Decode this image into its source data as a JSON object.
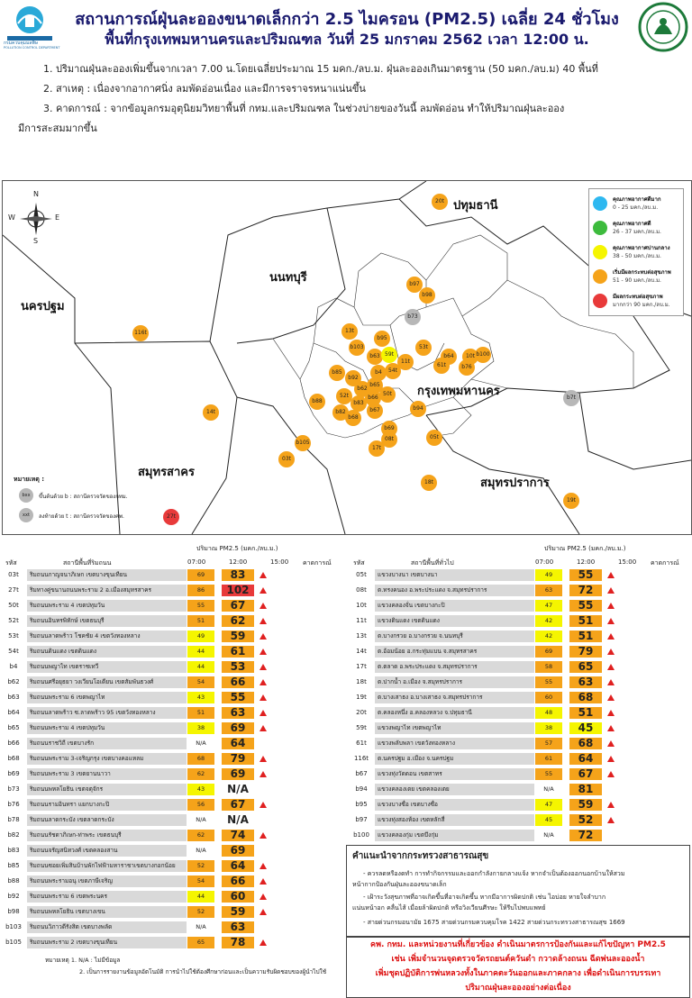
{
  "header": {
    "title1": "สถานการณ์ฝุ่นละอองขนาดเล็กกว่า 2.5 ไมครอน (PM2.5) เฉลี่ย 24 ชั่วโมง",
    "title2": "พื้นที่กรุงเทพมหานครและปริมณฑล วันที่ 25 มกราคม 2562 เวลา 12:00 น.",
    "left_logo_text": "กรมควบคุมมลพิษ",
    "left_logo_sub": "POLLUTION CONTROL DEPARTMENT"
  },
  "notes": [
    "1. ปริมาณฝุ่นละอองเพิ่มขึ้นจากเวลา 7.00 น.โดยเฉลี่ยประมาณ 15 มคก./ลบ.ม. ฝุ่นละอองเกินมาตรฐาน (50 มคก./ลบ.ม) 40 พื้นที่",
    "2. สาเหตุ :  เนื่องจากอากาศนิ่ง ลมพัดอ่อนเนื่อง และมีการจราจรหนาแน่นขึ้น",
    "3. คาดการณ์ : จากข้อมูลกรมอุตุนิยมวิทยาพื้นที่ กทม.และปริมณฑล ในช่วงบ่ายของวันนี้ ลมพัดอ่อน ทำให้ปริมาณฝุ่นละออง",
    "มีการสะสมมากขึ้น"
  ],
  "map": {
    "compass": {
      "n": "N",
      "s": "S",
      "e": "E",
      "w": "W"
    },
    "provinces": {
      "pathum": "ปทุมธานี",
      "nonthaburi": "นนทบุรี",
      "nakhonpathom": "นครปฐม",
      "bangkok": "กรุงเทพมหานคร",
      "samutsakhon": "สมุทรสาคร",
      "samutprakan": "สมุทรปราการ"
    },
    "legend": [
      {
        "title": "คุณภาพอากาศดีมาก",
        "range": "0 - 25 มคก./ลบ.ม.",
        "color": "#2eb8f0"
      },
      {
        "title": "คุณภาพอากาศดี",
        "range": "26 - 37 มคก./ลบ.ม.",
        "color": "#3dbb3d"
      },
      {
        "title": "คุณภาพอากาศปานกลาง",
        "range": "38 - 50 มคก./ลบ.ม.",
        "color": "#f5f500"
      },
      {
        "title": "เริ่มมีผลกระทบต่อสุขภาพ",
        "range": "51 - 90 มคก./ลบ.ม.",
        "color": "#f5a31a"
      },
      {
        "title": "มีผลกระทบต่อสุขภาพ",
        "range": "มากกว่า 90 มคก./ลบ.ม.",
        "color": "#e83a3a"
      }
    ],
    "key_title": "หมายเหตุ :",
    "key_b": "ขึ้นต้นด้วย b : สถานีตรวจวัดของกทม.",
    "key_t": "ลงท้ายด้วย t : สถานีตรวจวัดของคพ.",
    "key_b_sample": "bxx",
    "key_t_sample": "xxt",
    "stations": [
      {
        "id": "20t",
        "color": "#f5a31a"
      },
      {
        "id": "b97",
        "color": "#f5a31a"
      },
      {
        "id": "b98",
        "color": "#f5a31a"
      },
      {
        "id": "b73",
        "color": "#b7b7b7"
      },
      {
        "id": "116t",
        "color": "#f5a31a"
      },
      {
        "id": "13t",
        "color": "#f5a31a"
      },
      {
        "id": "b95",
        "color": "#f5a31a"
      },
      {
        "id": "b103",
        "color": "#f5a31a"
      },
      {
        "id": "b63",
        "color": "#f5a31a"
      },
      {
        "id": "59t",
        "color": "#f5f500"
      },
      {
        "id": "53t",
        "color": "#f5a31a"
      },
      {
        "id": "b64",
        "color": "#f5a31a"
      },
      {
        "id": "10t",
        "color": "#f5a31a"
      },
      {
        "id": "b100",
        "color": "#f5a31a"
      },
      {
        "id": "b85",
        "color": "#f5a31a"
      },
      {
        "id": "b4",
        "color": "#f5a31a"
      },
      {
        "id": "54t",
        "color": "#f5a31a"
      },
      {
        "id": "11t",
        "color": "#f5a31a"
      },
      {
        "id": "61t",
        "color": "#f5a31a"
      },
      {
        "id": "b76",
        "color": "#f5a31a"
      },
      {
        "id": "b92",
        "color": "#f5a31a"
      },
      {
        "id": "b62",
        "color": "#f5a31a"
      },
      {
        "id": "b65",
        "color": "#f5a31a"
      },
      {
        "id": "52t",
        "color": "#f5a31a"
      },
      {
        "id": "b66",
        "color": "#f5a31a"
      },
      {
        "id": "50t",
        "color": "#f5a31a"
      },
      {
        "id": "b88",
        "color": "#f5a31a"
      },
      {
        "id": "b83",
        "color": "#f5a31a"
      },
      {
        "id": "b67",
        "color": "#f5a31a"
      },
      {
        "id": "b82",
        "color": "#f5a31a"
      },
      {
        "id": "b68",
        "color": "#f5a31a"
      },
      {
        "id": "b94",
        "color": "#f5a31a"
      },
      {
        "id": "b7t",
        "color": "#b7b7b7"
      },
      {
        "id": "14t",
        "color": "#f5a31a"
      },
      {
        "id": "b69",
        "color": "#f5a31a"
      },
      {
        "id": "08t",
        "color": "#f5a31a"
      },
      {
        "id": "b105",
        "color": "#f5a31a"
      },
      {
        "id": "17t",
        "color": "#f5a31a"
      },
      {
        "id": "05t",
        "color": "#f5a31a"
      },
      {
        "id": "03t",
        "color": "#f5a31a"
      },
      {
        "id": "18t",
        "color": "#f5a31a"
      },
      {
        "id": "19t",
        "color": "#f5a31a"
      },
      {
        "id": "27t",
        "color": "#e83a3a"
      }
    ]
  },
  "table": {
    "unit_header": "ปริมาณ PM2.5 (มคก./ลบ.ม.)",
    "col_code": "รหัส",
    "col_name_left": "สถานีพื้นที่ริมถนน",
    "col_name_right": "สถานีพื้นที่ทั่วไป",
    "col_07": "07:00",
    "col_12": "12:00",
    "col_15": "15:00",
    "col_fc": "คาดการณ์",
    "left": [
      {
        "code": "03t",
        "name": "ริมถนนกาญจนาภิเษก เขตบางขุนเทียน",
        "v07": "69",
        "v12": "83",
        "c07": "#f5a31a",
        "c12": "#f5a31a",
        "up": true
      },
      {
        "code": "27t",
        "name": "ริมทางคู่ขนานถนนพระราม 2 อ.เมืองสมุทรสาคร",
        "v07": "86",
        "v12": "102",
        "c07": "#f5a31a",
        "c12": "#e83a3a",
        "up": true
      },
      {
        "code": "50t",
        "name": "ริมถนนพระราม 4 เขตปทุมวัน",
        "v07": "55",
        "v12": "67",
        "c07": "#f5a31a",
        "c12": "#f5a31a",
        "up": true
      },
      {
        "code": "52t",
        "name": "ริมถนนอินทรพิทักษ์ เขตธนบุรี",
        "v07": "51",
        "v12": "62",
        "c07": "#f5a31a",
        "c12": "#f5a31a",
        "up": true
      },
      {
        "code": "53t",
        "name": "ริมถนนลาดพร้าว โชคชัย 4 เขตวังทองหลาง",
        "v07": "49",
        "v12": "59",
        "c07": "#f5f500",
        "c12": "#f5a31a",
        "up": true
      },
      {
        "code": "54t",
        "name": "ริมถนนดินแดง เขตดินแดง",
        "v07": "44",
        "v12": "61",
        "c07": "#f5f500",
        "c12": "#f5a31a",
        "up": true
      },
      {
        "code": "b4",
        "name": "ริมถนนพญาไท เขตราชเทวี",
        "v07": "44",
        "v12": "53",
        "c07": "#f5f500",
        "c12": "#f5a31a",
        "up": true
      },
      {
        "code": "b62",
        "name": "ริมถนนศรีอยุธยา วงเวียนโอเดียน เขตสัมพันธวงศ์",
        "v07": "54",
        "v12": "66",
        "c07": "#f5a31a",
        "c12": "#f5a31a",
        "up": true
      },
      {
        "code": "b63",
        "name": "ริมถนนพระราม 6 เขตพญาไท",
        "v07": "43",
        "v12": "55",
        "c07": "#f5f500",
        "c12": "#f5a31a",
        "up": true
      },
      {
        "code": "b64",
        "name": "ริมถนนลาดพร้าว ซ.ลาดพร้าว 95 เขตวังทองหลาง",
        "v07": "51",
        "v12": "63",
        "c07": "#f5a31a",
        "c12": "#f5a31a",
        "up": true
      },
      {
        "code": "b65",
        "name": "ริมถนนพระราม 4 เขตปทุมวัน",
        "v07": "38",
        "v12": "69",
        "c07": "#f5f500",
        "c12": "#f5a31a",
        "up": true
      },
      {
        "code": "b66",
        "name": "ริมถนนราชวิถี เขตบางรัก",
        "v07": "N/A",
        "v12": "64",
        "c07": "#ffffff",
        "c12": "#f5a31a",
        "up": false
      },
      {
        "code": "b68",
        "name": "ริมถนนพระราม 3-เจริญกรุง เขตบางคอแหลม",
        "v07": "68",
        "v12": "79",
        "c07": "#f5a31a",
        "c12": "#f5a31a",
        "up": true
      },
      {
        "code": "b69",
        "name": "ริมถนนพระราม 3 เขตยานนาวา",
        "v07": "62",
        "v12": "69",
        "c07": "#f5a31a",
        "c12": "#f5a31a",
        "up": true
      },
      {
        "code": "b73",
        "name": "ริมถนนพหลโยธิน เขตจตุจักร",
        "v07": "43",
        "v12": "N/A",
        "c07": "#f5f500",
        "c12": "#ffffff",
        "up": false
      },
      {
        "code": "b76",
        "name": "ริมถนนรามอินทรา แยกบางกะปิ",
        "v07": "56",
        "v12": "67",
        "c07": "#f5a31a",
        "c12": "#f5a31a",
        "up": true
      },
      {
        "code": "b78",
        "name": "ริมถนนลาดกระบัง เขตลาดกระบัง",
        "v07": "N/A",
        "v12": "N/A",
        "c07": "#ffffff",
        "c12": "#ffffff",
        "up": false
      },
      {
        "code": "b82",
        "name": "ริมถนนรัชดาภิเษก-ท่าพระ เขตธนบุรี",
        "v07": "62",
        "v12": "74",
        "c07": "#f5a31a",
        "c12": "#f5a31a",
        "up": true
      },
      {
        "code": "b83",
        "name": "ริมถนนจรัญสนิทวงศ์ เขตคลองสาน",
        "v07": "N/A",
        "v12": "69",
        "c07": "#ffffff",
        "c12": "#f5a31a",
        "up": false
      },
      {
        "code": "b85",
        "name": "ริมถนนซอยเพิ่มสินบ้านพักไฟฟ้ามหาราชาเขตบางกอกน้อย",
        "v07": "52",
        "v12": "64",
        "c07": "#f5a31a",
        "c12": "#f5a31a",
        "up": true
      },
      {
        "code": "b88",
        "name": "ริมถนนพระรามอนุ เขตภาษีเจริญ",
        "v07": "54",
        "v12": "66",
        "c07": "#f5a31a",
        "c12": "#f5a31a",
        "up": true
      },
      {
        "code": "b92",
        "name": "ริมถนนพระราม 6 เขตพระนคร",
        "v07": "44",
        "v12": "60",
        "c07": "#f5f500",
        "c12": "#f5a31a",
        "up": true
      },
      {
        "code": "b98",
        "name": "ริมถนนพหลโยธิน เขตบางเขน",
        "v07": "52",
        "v12": "59",
        "c07": "#f5a31a",
        "c12": "#f5a31a",
        "up": true
      },
      {
        "code": "b103",
        "name": "ริมถนนวิภาวดีรังสิต เขตบางพลัด",
        "v07": "N/A",
        "v12": "63",
        "c07": "#ffffff",
        "c12": "#f5a31a",
        "up": false
      },
      {
        "code": "b105",
        "name": "ริมถนนพระราม 2 เขตบางขุนเทียน",
        "v07": "65",
        "v12": "78",
        "c07": "#f5a31a",
        "c12": "#f5a31a",
        "up": true
      }
    ],
    "right": [
      {
        "code": "05t",
        "name": "แขวงบางนา เขตบางนา",
        "v07": "49",
        "v12": "55",
        "c07": "#f5f500",
        "c12": "#f5a31a",
        "up": true
      },
      {
        "code": "08t",
        "name": "ต.ทรงคนอง อ.พระประแดง จ.สมุทรปราการ",
        "v07": "63",
        "v12": "72",
        "c07": "#f5a31a",
        "c12": "#f5a31a",
        "up": true
      },
      {
        "code": "10t",
        "name": "แขวงคลองจั่น เขตบางกะปิ",
        "v07": "47",
        "v12": "55",
        "c07": "#f5f500",
        "c12": "#f5a31a",
        "up": true
      },
      {
        "code": "11t",
        "name": "แขวงดินแดง เขตดินแดง",
        "v07": "42",
        "v12": "51",
        "c07": "#f5f500",
        "c12": "#f5a31a",
        "up": true
      },
      {
        "code": "13t",
        "name": "ต.บางกรวย อ.บางกรวย จ.นนทบุรี",
        "v07": "42",
        "v12": "51",
        "c07": "#f5f500",
        "c12": "#f5a31a",
        "up": true
      },
      {
        "code": "14t",
        "name": "ต.อ้อมน้อย อ.กระทุ่มแบน จ.สมุทรสาคร",
        "v07": "69",
        "v12": "79",
        "c07": "#f5a31a",
        "c12": "#f5a31a",
        "up": true
      },
      {
        "code": "17t",
        "name": "ต.ตลาด อ.พระประแดง จ.สมุทรปราการ",
        "v07": "58",
        "v12": "65",
        "c07": "#f5a31a",
        "c12": "#f5a31a",
        "up": true
      },
      {
        "code": "18t",
        "name": "ต.ปากน้ำ อ.เมือง จ.สมุทรปราการ",
        "v07": "55",
        "v12": "63",
        "c07": "#f5a31a",
        "c12": "#f5a31a",
        "up": true
      },
      {
        "code": "19t",
        "name": "ต.บางเสาธง อ.บางเสาธง จ.สมุทรปราการ",
        "v07": "60",
        "v12": "68",
        "c07": "#f5a31a",
        "c12": "#f5a31a",
        "up": true
      },
      {
        "code": "20t",
        "name": "ต.คลองหนึ่ง อ.คลองหลวง จ.ปทุมธานี",
        "v07": "48",
        "v12": "51",
        "c07": "#f5f500",
        "c12": "#f5a31a",
        "up": true
      },
      {
        "code": "59t",
        "name": "แขวงพญาไท เขตพญาไท",
        "v07": "38",
        "v12": "45",
        "c07": "#f5f500",
        "c12": "#f5f500",
        "up": true
      },
      {
        "code": "61t",
        "name": "แขวงพลับพลา เขตวังทองหลาง",
        "v07": "57",
        "v12": "68",
        "c07": "#f5a31a",
        "c12": "#f5a31a",
        "up": true
      },
      {
        "code": "116t",
        "name": "ต.นครปฐม อ.เมือง จ.นครปฐม",
        "v07": "61",
        "v12": "64",
        "c07": "#f5a31a",
        "c12": "#f5a31a",
        "up": true
      },
      {
        "code": "b67",
        "name": "แขวงทุ่งวัดดอน เขตสาทร",
        "v07": "55",
        "v12": "67",
        "c07": "#f5a31a",
        "c12": "#f5a31a",
        "up": true
      },
      {
        "code": "b94",
        "name": "แขวงคลองเตย เขตคลองเตย",
        "v07": "N/A",
        "v12": "81",
        "c07": "#ffffff",
        "c12": "#f5a31a",
        "up": false
      },
      {
        "code": "b95",
        "name": "แขวงบางซื่อ เขตบางซื่อ",
        "v07": "47",
        "v12": "59",
        "c07": "#f5f500",
        "c12": "#f5a31a",
        "up": true
      },
      {
        "code": "b97",
        "name": "แขวงทุ่งสองห้อง เขตหลักสี่",
        "v07": "45",
        "v12": "52",
        "c07": "#f5f500",
        "c12": "#f5a31a",
        "up": true
      },
      {
        "code": "b100",
        "name": "แขวงคลองกุ่ม เขตบึงกุ่ม",
        "v07": "N/A",
        "v12": "72",
        "c07": "#ffffff",
        "c12": "#f5a31a",
        "up": false
      }
    ]
  },
  "advice": {
    "title": "คำแนะนำจากกระทรวงสาธารณสุข",
    "lines": [
      "- ควรลดหรืองดทำ การทำกิจกรรมและออกกำลังกายกลางแจ้ง หากจำเป็นต้องออกนอกบ้านให้สวม",
      "หน้ากากป้องกันฝุ่นละอองขนาดเล็ก",
      "- เฝ้าระวังสุขภาพที่อาจเกิดขึ้นที่อาจเกิดขึ้น หากมีอาการผิดปกติ เช่น ไอบ่อย หายใจลำบาก",
      "แน่นหน้าอก คลื่นไส้ เมื่อยล้าผิดปกติ หรือวิงเวียนศีรษะ ให้รีบไปพบแพทย์",
      "- สายด่วนกรมอนามัย  1675 สายด่วนกรมควบคุมโรค 1422 สายด่วนกระทรวงสาธารณสุข 1669"
    ]
  },
  "alert": [
    "คพ. กทม. และหน่วยงานที่เกี่ยวข้อง ดำเนินมาตรการป้องกันและแก้ไขปัญหา PM2.5",
    "เช่น เพิ่มจำนวนจุดตรวจวัดรถยนต์ควันดำ กวาดล้างถนน ฉีดพ่นละอองน้ำ",
    "เพิ่มชุดปฏิบัติการพ่นหลวงทั้งในภาคตะวันออกและภาคกลาง เพื่อดำเนินการบรรเทา",
    "ปริมาณฝุ่นละอองอย่างต่อเนื่อง"
  ],
  "footnote": [
    "หมายเหตุ 1. N/A : ไม่มีข้อมูล",
    "2. เป็นการรายงานข้อมูลอัตโนมัติ การนำไปใช้ต้องศึกษาก่อนและเป็นความรับผิดชอบของผู้นำไปใช้"
  ]
}
